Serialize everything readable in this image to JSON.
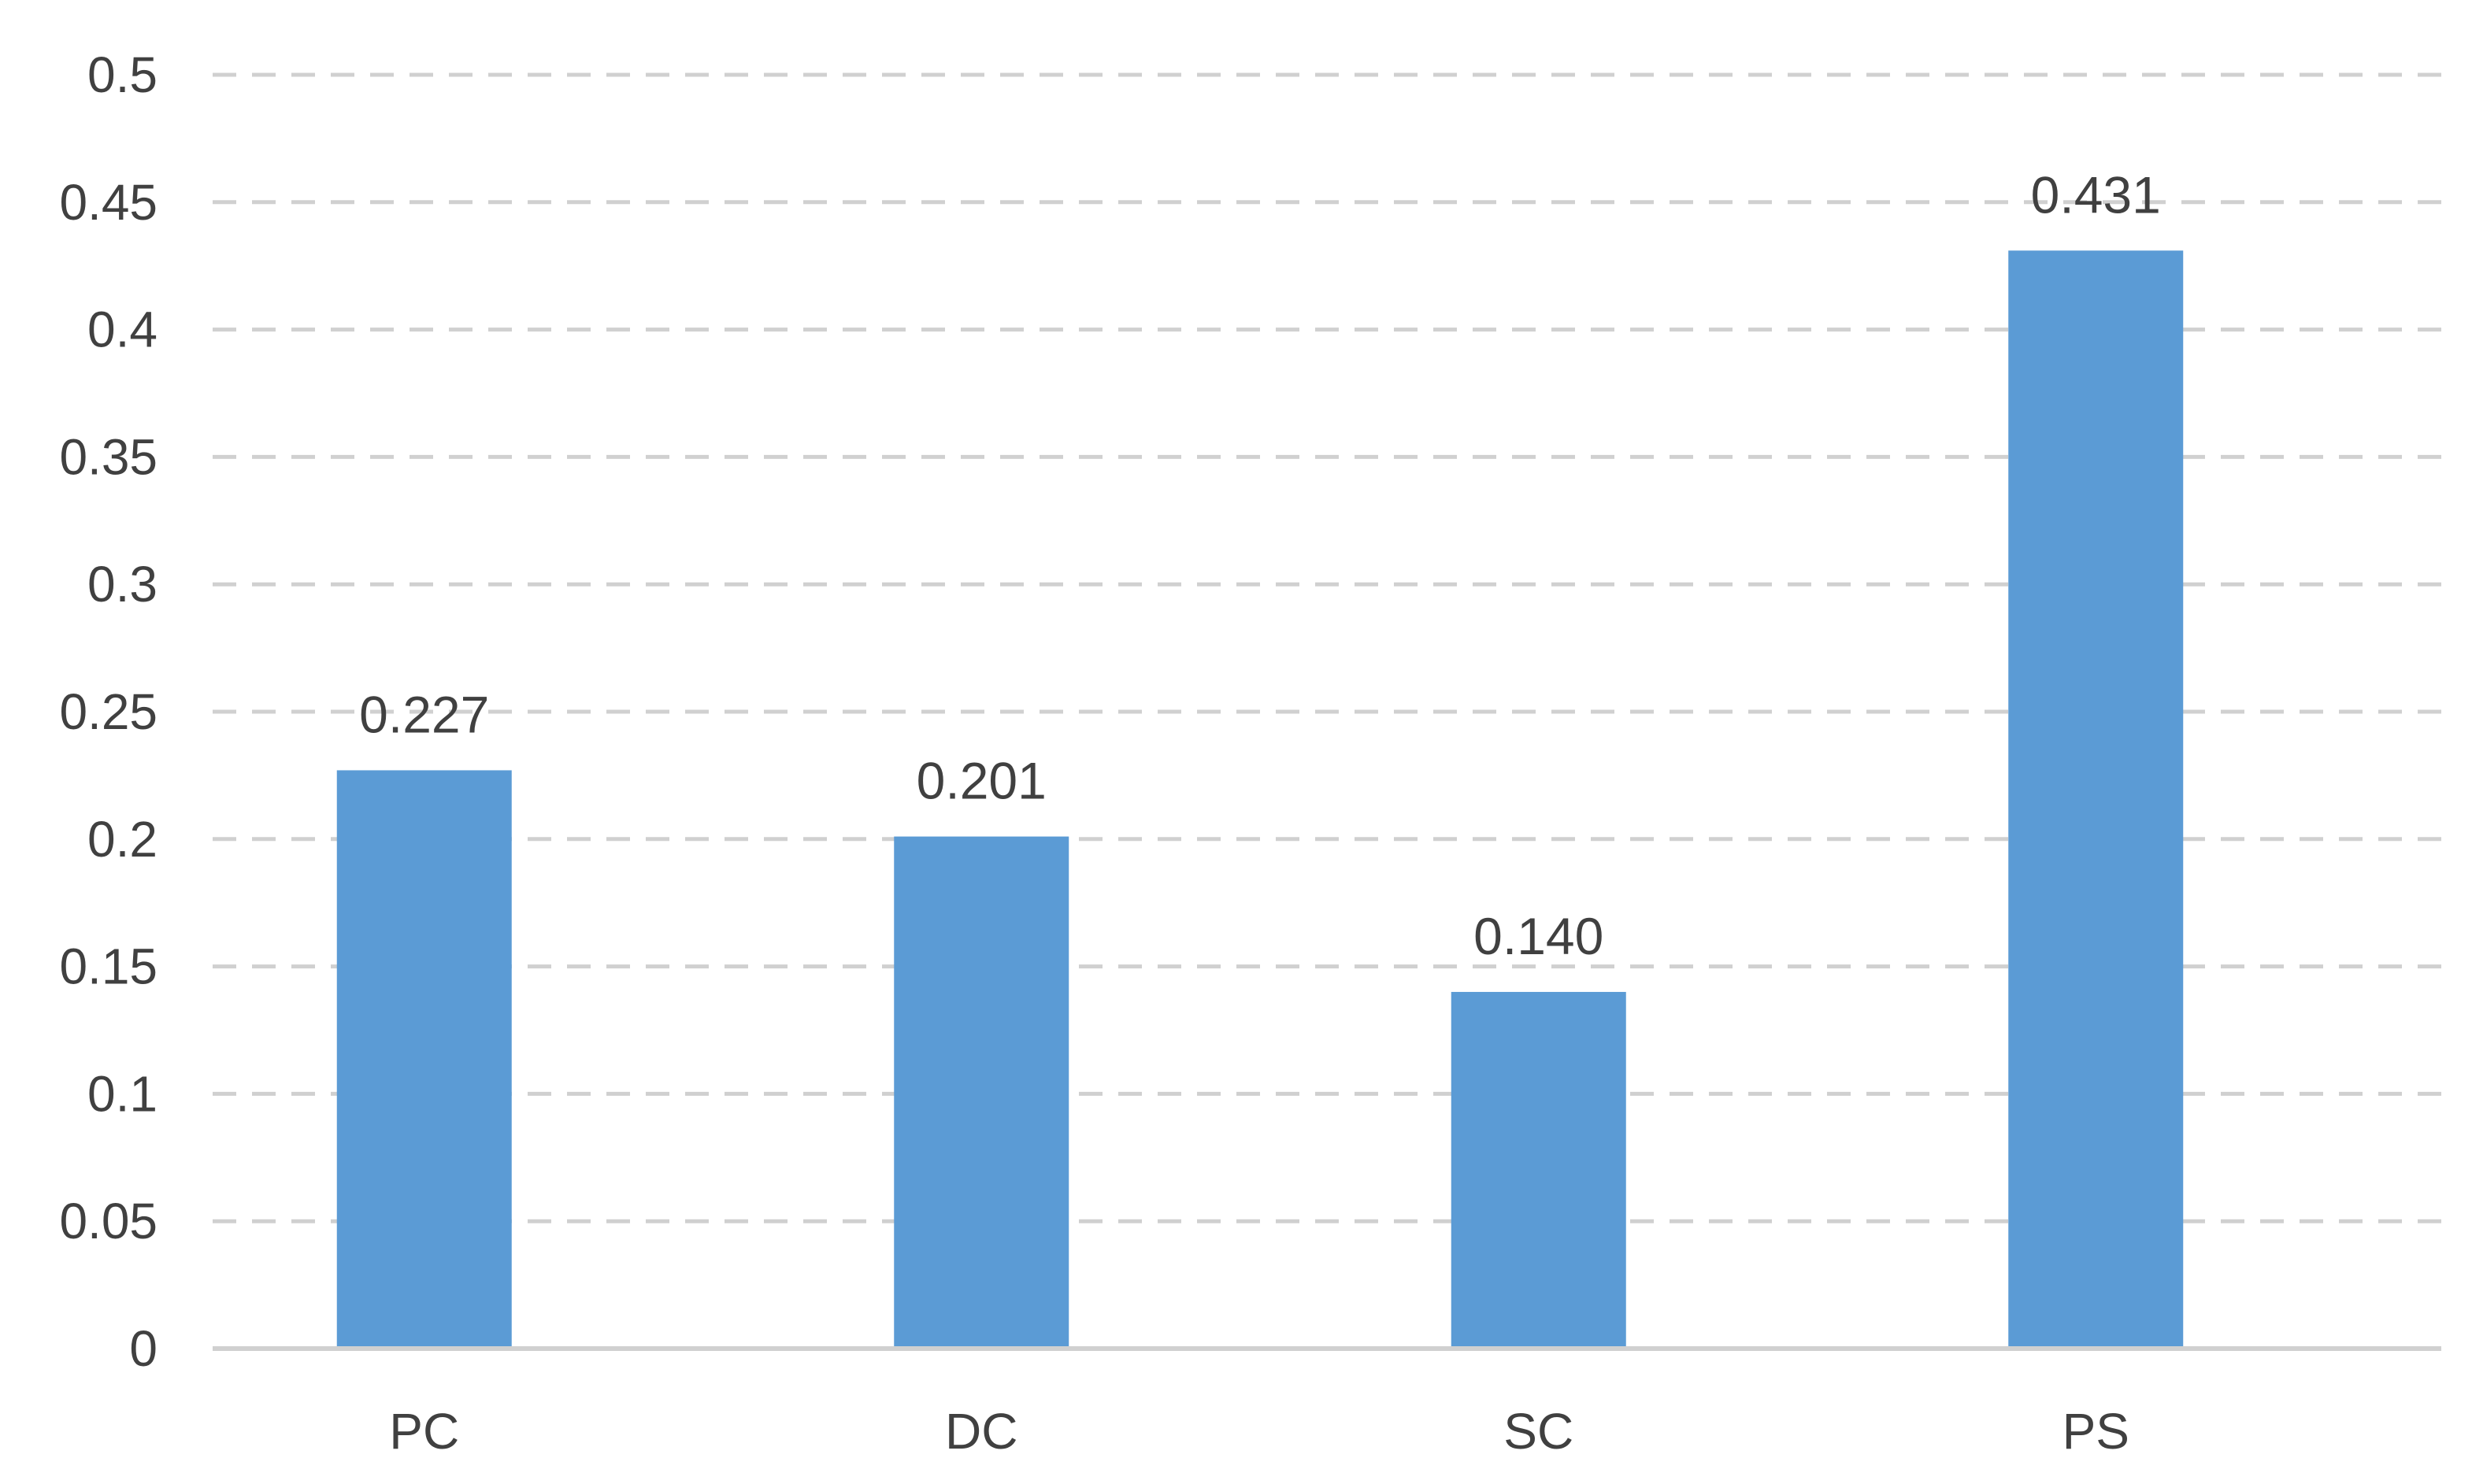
{
  "chart_data": {
    "type": "bar",
    "categories": [
      "PC",
      "DC",
      "SC",
      "PS"
    ],
    "series": [
      {
        "values": [
          0.227,
          0.201,
          0.14,
          0.431
        ],
        "labels": [
          "0.227",
          "0.201",
          "0.140",
          "0.431"
        ]
      }
    ],
    "ylim": [
      0,
      0.5
    ],
    "yticks": [
      0,
      0.05,
      0.1,
      0.15,
      0.2,
      0.25,
      0.3,
      0.35,
      0.4,
      0.45,
      0.5
    ],
    "ytick_labels": [
      "0",
      "0.05",
      "0.1",
      "0.15",
      "0.2",
      "0.25",
      "0.3",
      "0.35",
      "0.4",
      "0.45",
      "0.5"
    ],
    "grid": true,
    "legend": "none",
    "colors": {
      "bar": "#5b9bd5"
    }
  }
}
